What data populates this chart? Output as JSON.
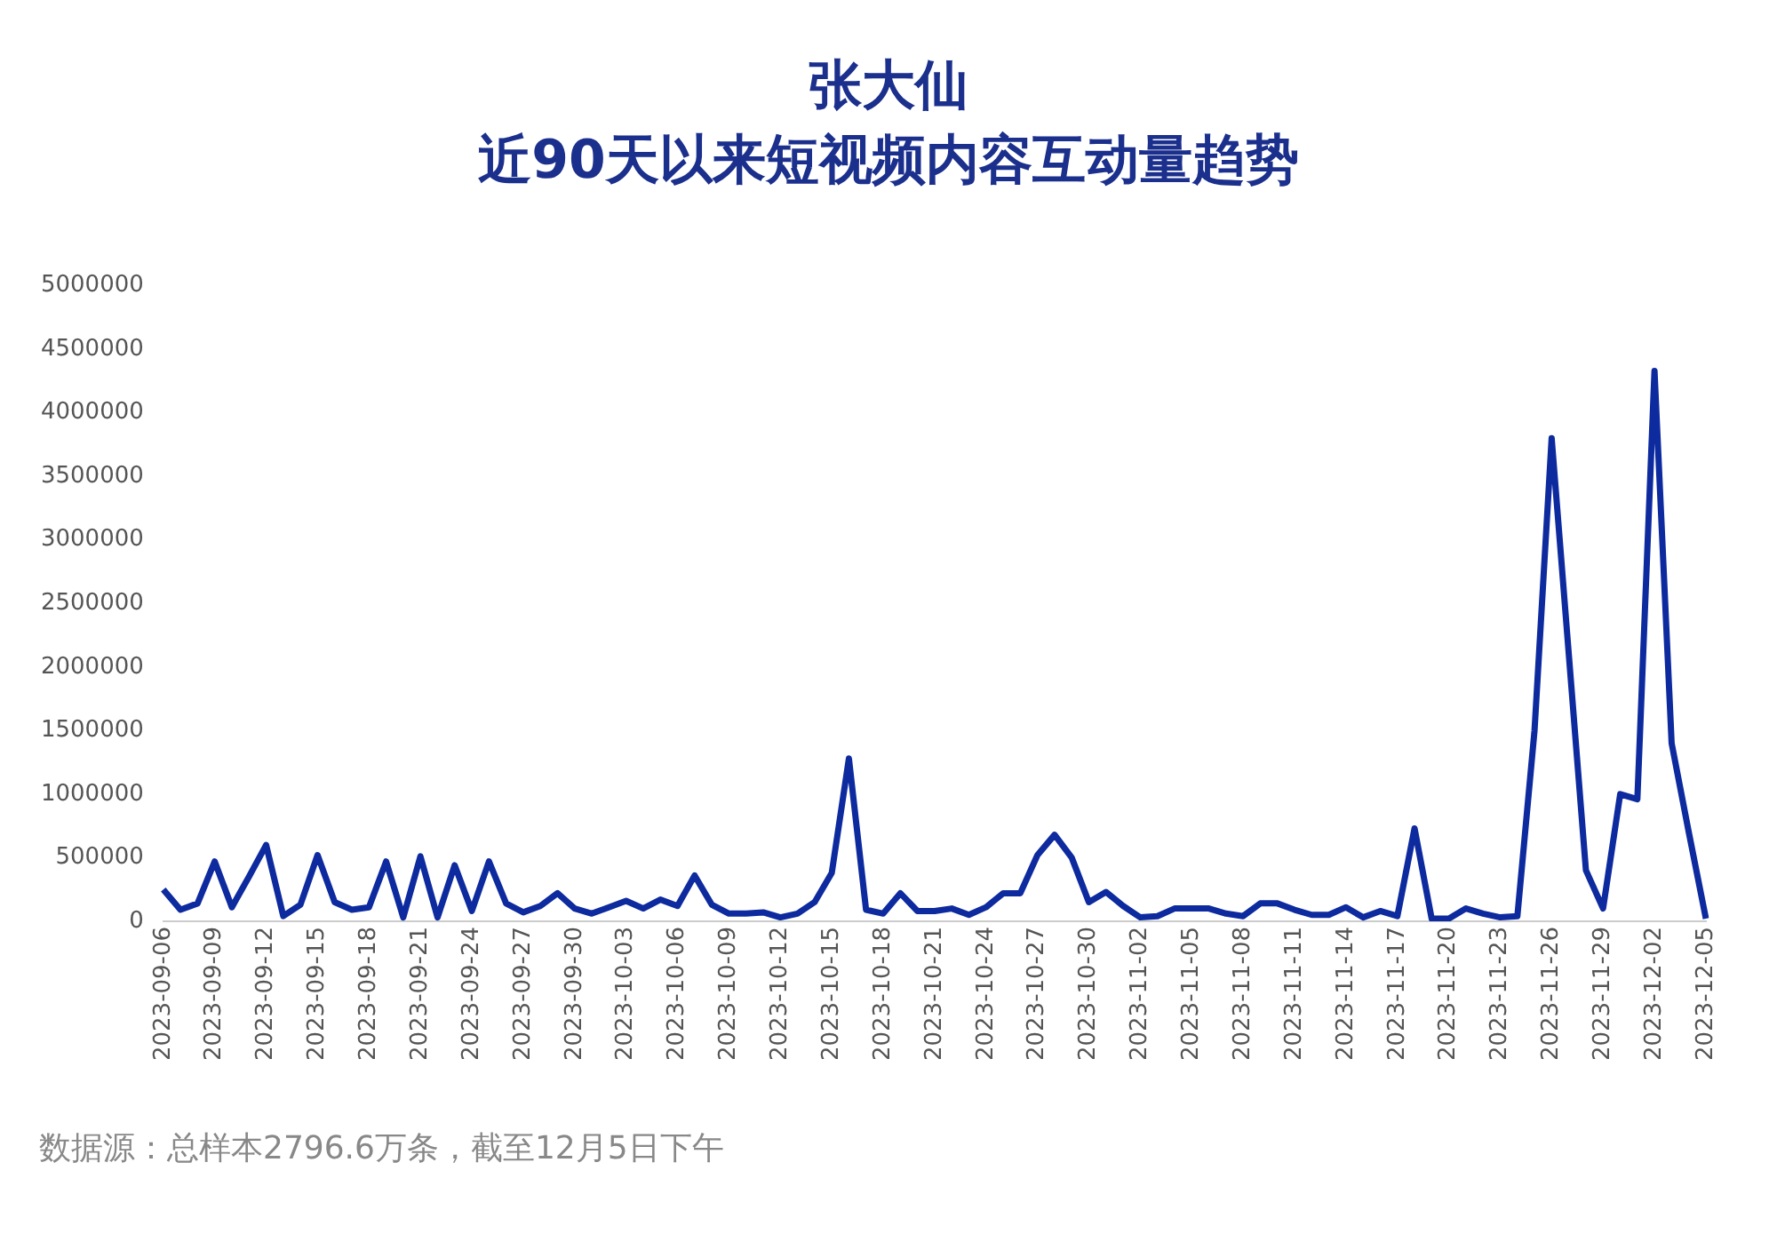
{
  "chart_data": {
    "type": "line",
    "title": "张大仙",
    "subtitle": "近90天以来短视频内容互动量趋势",
    "categories": [
      "2023-09-06",
      null,
      null,
      "2023-09-09",
      null,
      null,
      "2023-09-12",
      null,
      null,
      "2023-09-15",
      null,
      null,
      "2023-09-18",
      null,
      null,
      "2023-09-21",
      null,
      null,
      "2023-09-24",
      null,
      null,
      "2023-09-27",
      null,
      null,
      "2023-09-30",
      null,
      null,
      "2023-10-03",
      null,
      null,
      "2023-10-06",
      null,
      null,
      "2023-10-09",
      null,
      null,
      "2023-10-12",
      null,
      null,
      "2023-10-15",
      null,
      null,
      "2023-10-18",
      null,
      null,
      "2023-10-21",
      null,
      null,
      "2023-10-24",
      null,
      null,
      "2023-10-27",
      null,
      null,
      "2023-10-30",
      null,
      null,
      "2023-11-02",
      null,
      null,
      "2023-11-05",
      null,
      null,
      "2023-11-08",
      null,
      null,
      "2023-11-11",
      null,
      null,
      "2023-11-14",
      null,
      null,
      "2023-11-17",
      null,
      null,
      "2023-11-20",
      null,
      null,
      "2023-11-23",
      null,
      null,
      "2023-11-26",
      null,
      null,
      "2023-11-29",
      null,
      null,
      "2023-12-02",
      null,
      null,
      "2023-12-05"
    ],
    "series": [
      {
        "color": "#0d2a9e",
        "values": [
          250000,
          90000,
          140000,
          470000,
          110000,
          350000,
          600000,
          40000,
          130000,
          520000,
          150000,
          90000,
          110000,
          470000,
          30000,
          510000,
          30000,
          440000,
          80000,
          470000,
          140000,
          70000,
          120000,
          220000,
          100000,
          60000,
          110000,
          160000,
          100000,
          170000,
          120000,
          360000,
          130000,
          60000,
          60000,
          70000,
          30000,
          60000,
          150000,
          380000,
          1280000,
          90000,
          60000,
          220000,
          80000,
          80000,
          100000,
          50000,
          110000,
          220000,
          220000,
          520000,
          680000,
          500000,
          150000,
          230000,
          120000,
          30000,
          40000,
          100000,
          100000,
          100000,
          60000,
          40000,
          140000,
          140000,
          90000,
          50000,
          50000,
          110000,
          30000,
          80000,
          40000,
          730000,
          20000,
          20000,
          100000,
          60000,
          30000,
          40000,
          1500000,
          3800000,
          2100000,
          400000,
          100000,
          1000000,
          960000,
          4330000,
          1400000,
          700000,
          20000
        ]
      }
    ],
    "ylim": [
      0,
      5000000
    ],
    "yticks": [
      0,
      500000,
      1000000,
      1500000,
      2000000,
      2500000,
      3000000,
      3500000,
      4000000,
      4500000,
      5000000
    ],
    "grid": false,
    "legend": false,
    "marker": "none",
    "line_style": "solid",
    "annotations": [
      "数据源：总样本2796.6万条，截至12月5日下午"
    ]
  }
}
